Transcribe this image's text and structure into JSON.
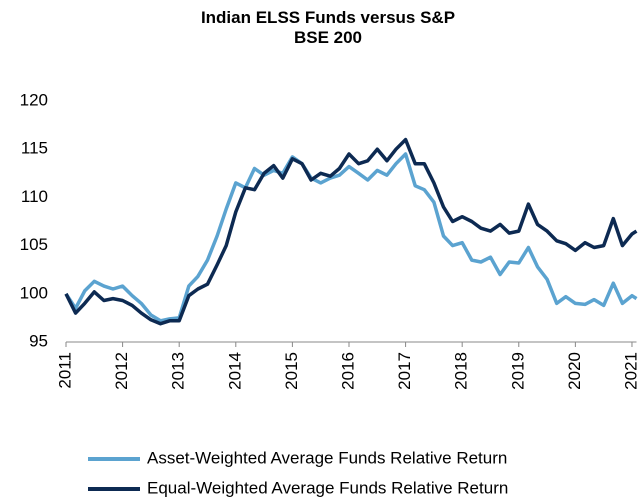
{
  "chart_data": {
    "type": "line",
    "title": "Indian ELSS Funds versus S&P BSE 200",
    "x": [
      2011.0,
      2011.17,
      2011.33,
      2011.5,
      2011.67,
      2011.83,
      2012.0,
      2012.17,
      2012.33,
      2012.5,
      2012.67,
      2012.83,
      2013.0,
      2013.17,
      2013.33,
      2013.5,
      2013.67,
      2013.83,
      2014.0,
      2014.17,
      2014.33,
      2014.5,
      2014.67,
      2014.83,
      2015.0,
      2015.17,
      2015.33,
      2015.5,
      2015.67,
      2015.83,
      2016.0,
      2016.17,
      2016.33,
      2016.5,
      2016.67,
      2016.83,
      2017.0,
      2017.17,
      2017.33,
      2017.5,
      2017.67,
      2017.83,
      2018.0,
      2018.17,
      2018.33,
      2018.5,
      2018.67,
      2018.83,
      2019.0,
      2019.17,
      2019.33,
      2019.5,
      2019.67,
      2019.83,
      2020.0,
      2020.17,
      2020.33,
      2020.5,
      2020.67,
      2020.83,
      2021.0,
      2021.08
    ],
    "series": [
      {
        "name": "Asset-Weighted Average Funds Relative Return",
        "color": "#5ba3d0",
        "values": [
          100,
          98.5,
          100.3,
          101.3,
          100.8,
          100.5,
          100.8,
          99.8,
          99.0,
          97.8,
          97.2,
          97.4,
          97.5,
          100.8,
          101.8,
          103.5,
          106,
          108.8,
          111.5,
          111,
          113,
          112.3,
          112.8,
          112.5,
          114.2,
          113.5,
          112,
          111.5,
          112,
          112.3,
          113.2,
          112.5,
          111.8,
          112.8,
          112.3,
          113.5,
          114.5,
          111.2,
          110.8,
          109.5,
          106,
          105,
          105.3,
          103.5,
          103.3,
          103.8,
          102,
          103.3,
          103.2,
          104.8,
          102.8,
          101.5,
          99,
          99.7,
          99,
          98.9,
          99.4,
          98.8,
          101.1,
          99,
          99.8,
          99.5
        ]
      },
      {
        "name": "Equal-Weighted Average Funds Relative Return",
        "color": "#0d2a52",
        "values": [
          100,
          98,
          99,
          100.2,
          99.3,
          99.5,
          99.3,
          98.8,
          98,
          97.3,
          96.9,
          97.2,
          97.2,
          99.8,
          100.5,
          101,
          103,
          105,
          108.5,
          111,
          110.8,
          112.5,
          113.3,
          112,
          114,
          113.5,
          111.8,
          112.5,
          112.2,
          113,
          114.5,
          113.5,
          113.8,
          115,
          113.8,
          115,
          116,
          113.5,
          113.5,
          111.5,
          109,
          107.5,
          108,
          107.5,
          106.8,
          106.5,
          107.2,
          106.3,
          106.5,
          109.3,
          107.2,
          106.5,
          105.5,
          105.2,
          104.5,
          105.3,
          104.8,
          105,
          107.8,
          105,
          106.2,
          106.5
        ]
      }
    ],
    "xlim": [
      2011,
      2021.08
    ],
    "xticks": [
      2011,
      2012,
      2013,
      2014,
      2015,
      2016,
      2017,
      2018,
      2019,
      2020,
      2021
    ],
    "ylim": [
      95,
      120
    ],
    "yticks": [
      95,
      100,
      105,
      110,
      115,
      120
    ],
    "legend": "bottom"
  }
}
